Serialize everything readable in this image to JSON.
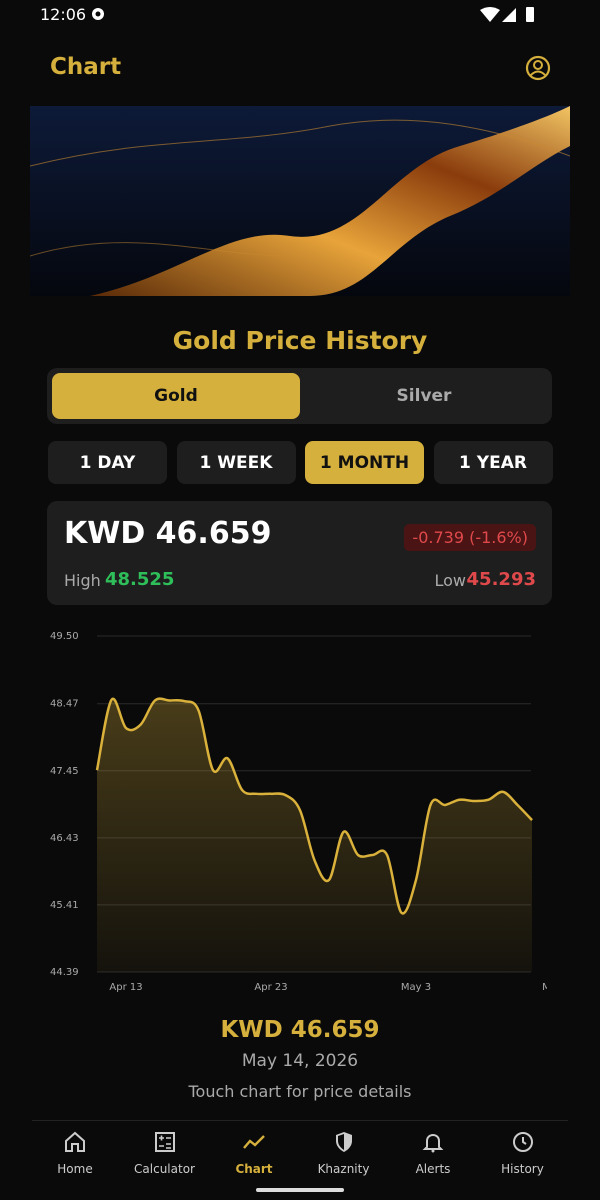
{
  "status_bar": {
    "time": "12:06"
  },
  "header": {
    "title": "Chart"
  },
  "section_title": "Gold Price History",
  "metal_tabs": {
    "items": [
      "Gold",
      "Silver"
    ],
    "selected": 0
  },
  "range_tabs": {
    "items": [
      "1 DAY",
      "1 WEEK",
      "1 MONTH",
      "1 YEAR"
    ],
    "selected": 2
  },
  "price_card": {
    "price": "KWD 46.659",
    "change": "-0.739 (-1.6%)",
    "high_label": "High",
    "high": "48.525",
    "low_label": "Low",
    "low": "45.293"
  },
  "chart_data": {
    "type": "area",
    "categories": [
      null,
      null,
      "Apr 13",
      null,
      null,
      null,
      null,
      null,
      null,
      null,
      null,
      null,
      "Apr 23",
      null,
      null,
      null,
      null,
      null,
      null,
      null,
      null,
      null,
      "May 3",
      null,
      null,
      null,
      null,
      null,
      null,
      null,
      null,
      "M"
    ],
    "series": [
      {
        "color": "#d9b13b",
        "values": [
          47.46,
          48.53,
          48.1,
          48.15,
          48.52,
          48.52,
          48.51,
          48.37,
          47.46,
          47.64,
          47.16,
          47.1,
          47.1,
          47.08,
          46.85,
          46.09,
          45.79,
          46.52,
          46.17,
          46.17,
          46.17,
          45.29,
          45.79,
          46.93,
          46.93,
          47.01,
          46.99,
          47.01,
          47.13,
          46.93,
          46.7,
          null
        ]
      }
    ],
    "ylim": [
      44.39,
      49.5
    ],
    "yticks": [
      44.39,
      45.41,
      46.43,
      47.45,
      48.47,
      {
        "value": 49.5,
        "label": "49.50"
      }
    ],
    "grid": true
  },
  "selection": {
    "price": "KWD 46.659",
    "date": "May 14, 2026",
    "hint": "Touch chart for price details"
  },
  "nav": {
    "items": [
      "Home",
      "Calculator",
      "Chart",
      "Khaznity",
      "Alerts",
      "History"
    ],
    "selected": 2
  }
}
